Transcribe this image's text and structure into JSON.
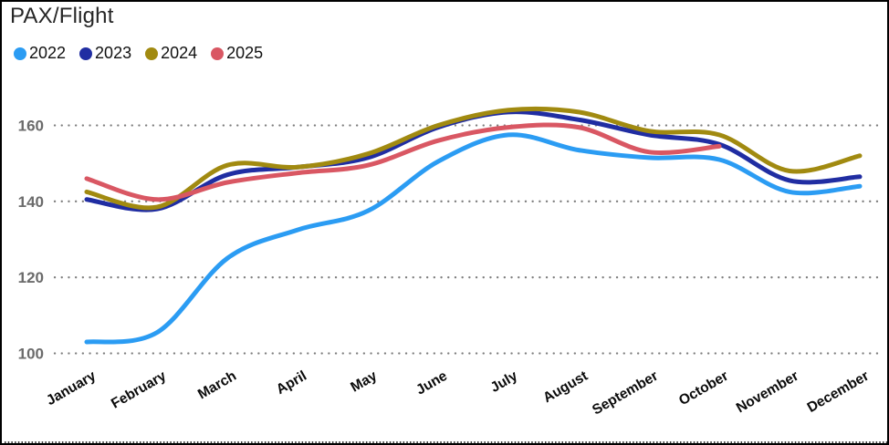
{
  "window": {
    "title": "PAX/Flight"
  },
  "chart_data": {
    "type": "line",
    "title": "PAX/Flight",
    "xlabel": "",
    "ylabel": "",
    "categories": [
      "January",
      "February",
      "March",
      "April",
      "May",
      "June",
      "July",
      "August",
      "September",
      "October",
      "November",
      "December"
    ],
    "series": [
      {
        "name": "2022",
        "color": "#2B9CF3",
        "values": [
          103,
          105.5,
          125,
          132.5,
          137.5,
          150.5,
          157.5,
          153.5,
          151.5,
          151,
          142.5,
          144
        ]
      },
      {
        "name": "2023",
        "color": "#202DA2",
        "values": [
          140.5,
          138,
          147,
          149,
          151.5,
          159.5,
          163.5,
          161.5,
          157.5,
          155,
          145.5,
          146.5
        ]
      },
      {
        "name": "2024",
        "color": "#A18A10",
        "values": [
          142.5,
          138.5,
          149.5,
          149,
          152.5,
          160,
          164,
          163.5,
          158.5,
          157.5,
          148,
          152
        ]
      },
      {
        "name": "2025",
        "color": "#D95763",
        "values": [
          146,
          140.5,
          145,
          147.5,
          149.5,
          156,
          159.5,
          159.5,
          153,
          154.5,
          null,
          null
        ]
      }
    ],
    "yticks": [
      100,
      120,
      140,
      160
    ],
    "ylim": [
      97,
      170
    ],
    "grid": "horizontal-dotted",
    "legend_position": "top-left",
    "colors": {
      "grid_dots": "#7e7e7e",
      "ytick_text": "#6b6b6b",
      "xtick_text": "#0a0a0a",
      "baseline_dots": "#3c3c3c",
      "title_text": "#262626"
    }
  }
}
